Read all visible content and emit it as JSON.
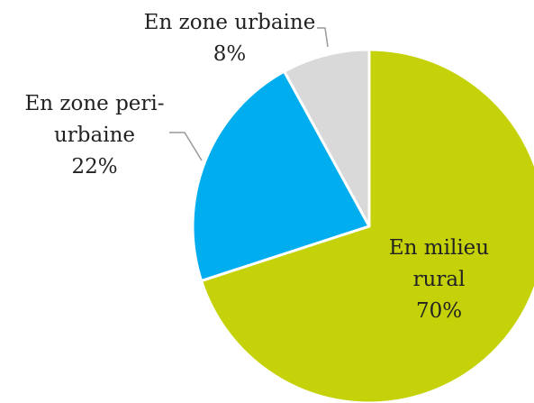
{
  "chart_data": {
    "type": "pie",
    "categories": [
      "En milieu rural",
      "En zone peri-urbaine",
      "En zone urbaine"
    ],
    "values": [
      70,
      22,
      8
    ],
    "value_labels": [
      "70%",
      "22%",
      "8%"
    ],
    "colors": [
      "#c5d20a",
      "#00aeef",
      "#d9d9d9"
    ]
  }
}
